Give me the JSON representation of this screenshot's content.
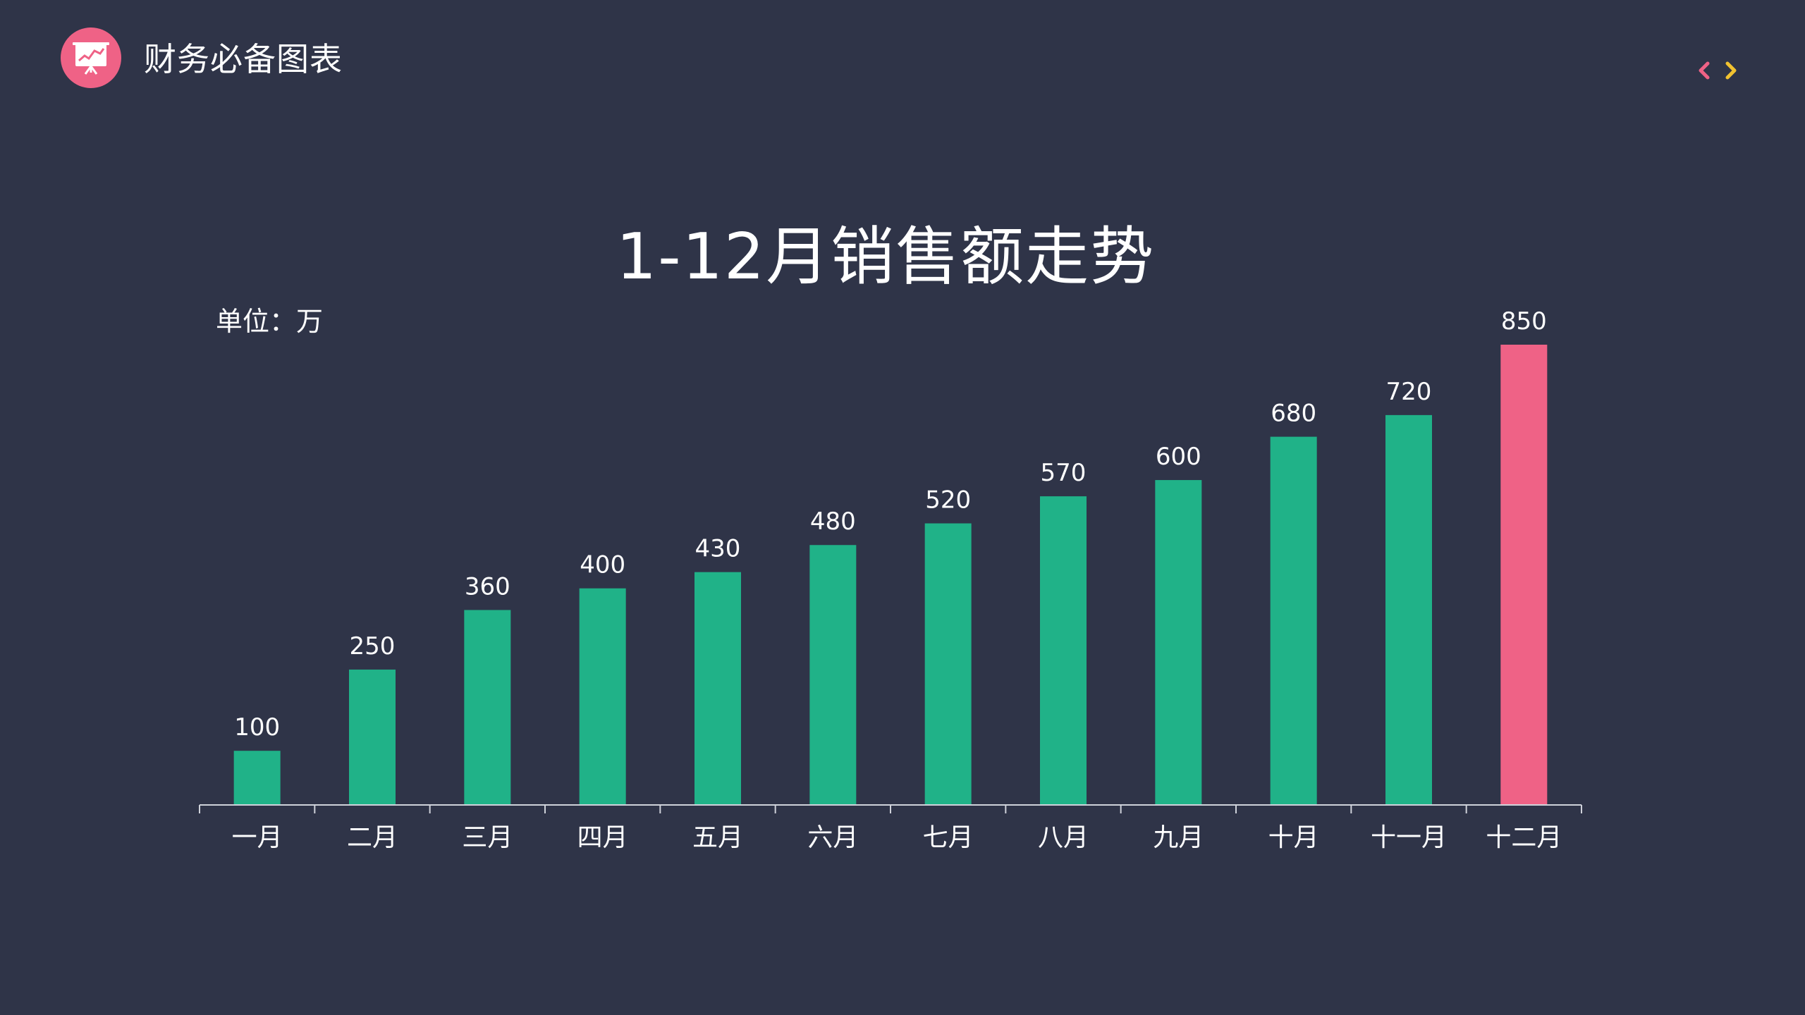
{
  "header": {
    "brand_title": "财务必备图表",
    "logo_icon": "presentation-chart-icon",
    "nav_prev_icon": "chevron-left-icon",
    "nav_next_icon": "chevron-right-icon"
  },
  "colors": {
    "background": "#2f3448",
    "accent_pink": "#ef6286",
    "bar_green": "#20b288",
    "bar_highlight": "#ef6286",
    "nav_prev": "#ef6286",
    "nav_next": "#f2c230",
    "axis": "#cfd2da"
  },
  "chart_data": {
    "type": "bar",
    "title": "1-12月销售额走势",
    "unit_label": "单位：万",
    "categories": [
      "一月",
      "二月",
      "三月",
      "四月",
      "五月",
      "六月",
      "七月",
      "八月",
      "九月",
      "十月",
      "十一月",
      "十二月"
    ],
    "values": [
      100,
      250,
      360,
      400,
      430,
      480,
      520,
      570,
      600,
      680,
      720,
      850
    ],
    "data_labels": [
      "100",
      "250",
      "360",
      "400",
      "430",
      "480",
      "520",
      "570",
      "600",
      "680",
      "720",
      "850"
    ],
    "highlight_index": 11,
    "ylim": [
      0,
      850
    ],
    "grid": false,
    "legend": "none"
  }
}
